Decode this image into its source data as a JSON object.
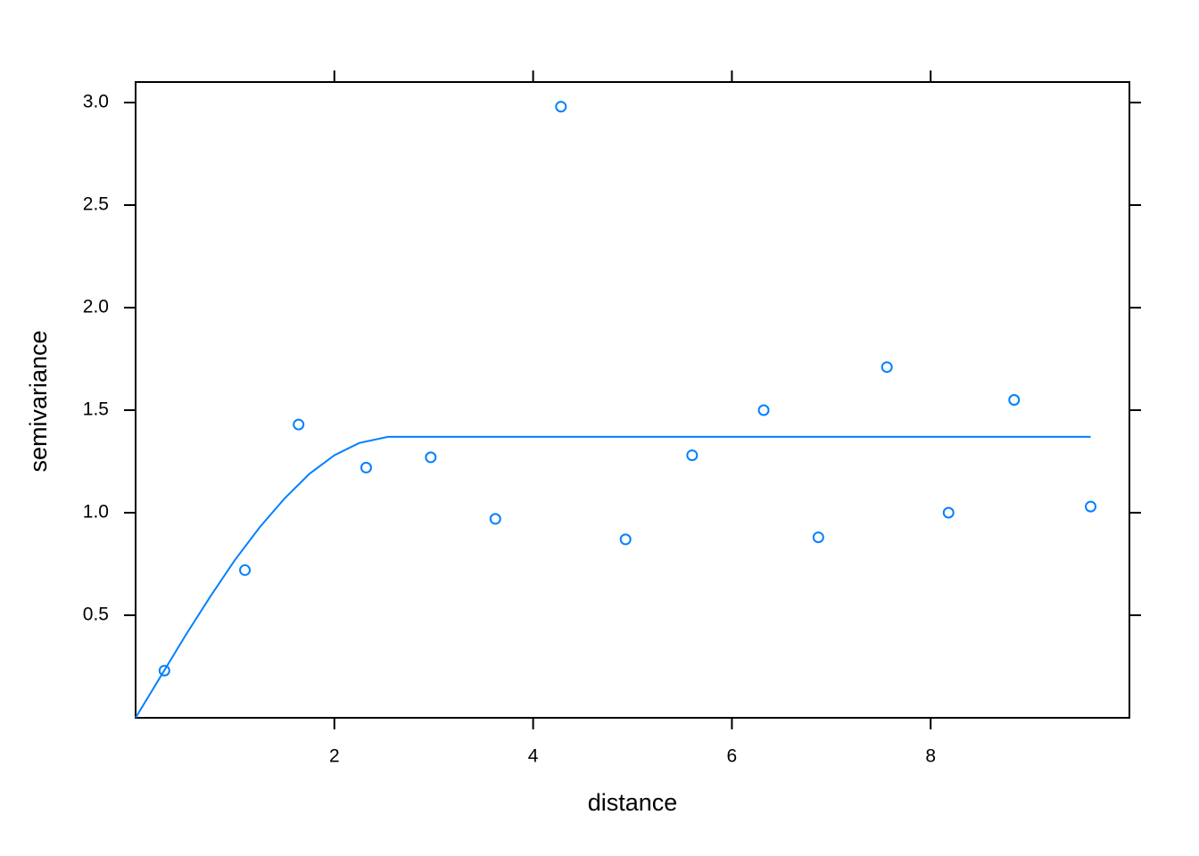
{
  "chart_data": {
    "type": "scatter",
    "x_label": "distance",
    "y_label": "semivariance",
    "xlim": [
      0,
      10
    ],
    "ylim": [
      0,
      3.1
    ],
    "xticks": [
      2,
      4,
      6,
      8
    ],
    "yticks": [
      {
        "value": 0.5,
        "label": "0.5"
      },
      {
        "value": 1,
        "label": "1.0"
      },
      {
        "value": 1.5,
        "label": "1.5"
      },
      {
        "value": 2,
        "label": "2.0"
      },
      {
        "value": 2.5,
        "label": "2.5"
      },
      {
        "value": 3,
        "label": "3.0"
      }
    ],
    "series": [
      {
        "type": "scatter",
        "color": "#0080ff",
        "x": [
          0.29,
          1.1,
          1.64,
          2.32,
          2.97,
          3.62,
          4.28,
          4.93,
          5.6,
          6.32,
          6.87,
          7.56,
          8.18,
          8.84,
          9.61
        ],
        "values": [
          0.23,
          0.72,
          1.43,
          1.22,
          1.27,
          0.97,
          2.98,
          0.87,
          1.28,
          1.5,
          0.88,
          1.71,
          1.0,
          1.55,
          1.03
        ]
      },
      {
        "type": "line",
        "color": "#0080ff",
        "x": [
          0,
          0.25,
          0.5,
          0.75,
          1,
          1.25,
          1.5,
          1.75,
          2,
          2.25,
          2.54,
          9.61
        ],
        "values": [
          0,
          0.2,
          0.4,
          0.59,
          0.77,
          0.93,
          1.07,
          1.19,
          1.28,
          1.34,
          1.37,
          1.37
        ]
      }
    ]
  }
}
